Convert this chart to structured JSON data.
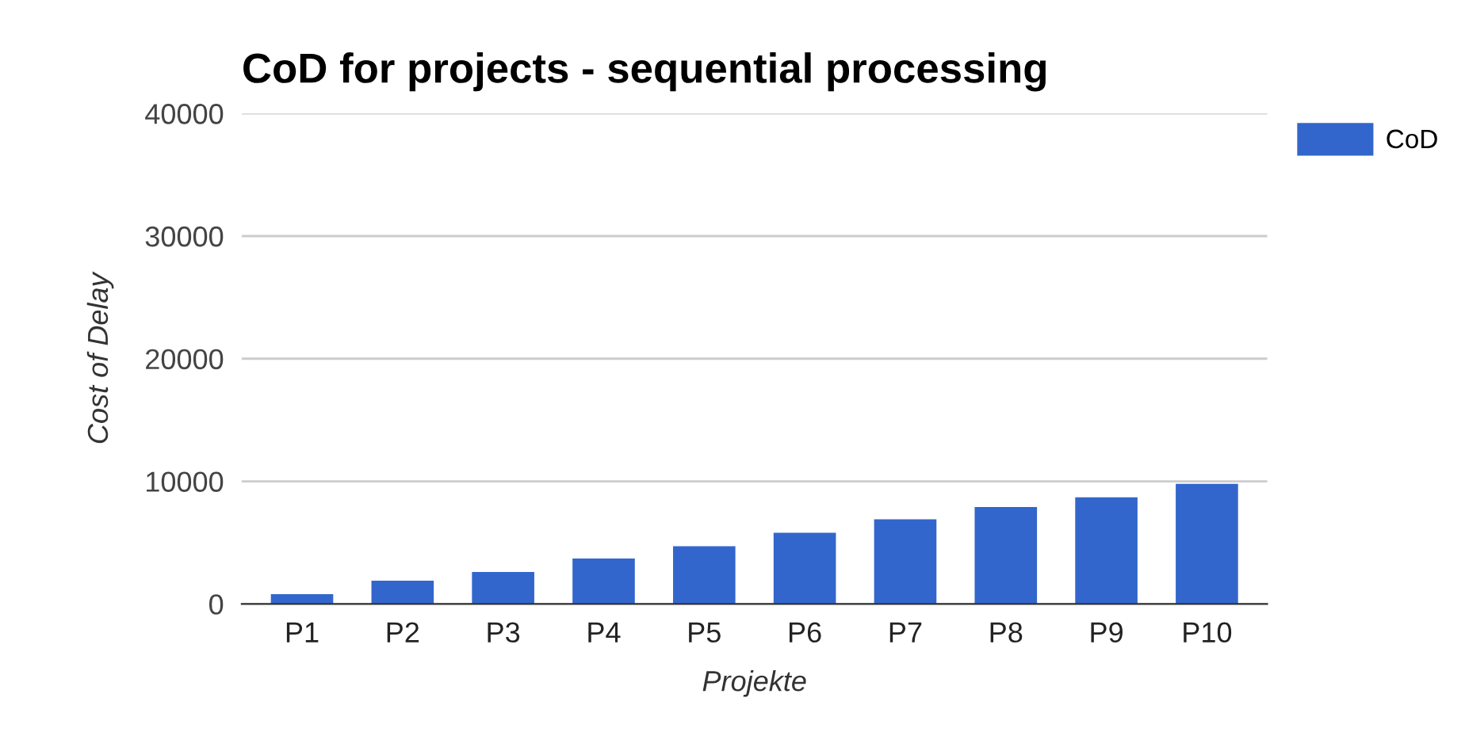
{
  "chart_data": {
    "type": "bar",
    "title": "CoD for projects - sequential processing",
    "xlabel": "Projekte",
    "ylabel": "Cost of Delay",
    "categories": [
      "P1",
      "P2",
      "P3",
      "P4",
      "P5",
      "P6",
      "P7",
      "P8",
      "P9",
      "P10"
    ],
    "series": [
      {
        "name": "CoD",
        "color": "#3366cc",
        "values": [
          800,
          1900,
          2600,
          3700,
          4700,
          5800,
          6900,
          7900,
          8700,
          9800
        ]
      }
    ],
    "ylim": [
      0,
      40000
    ],
    "yticks": [
      0,
      10000,
      20000,
      30000,
      40000
    ],
    "grid": "y",
    "legend": "right"
  }
}
